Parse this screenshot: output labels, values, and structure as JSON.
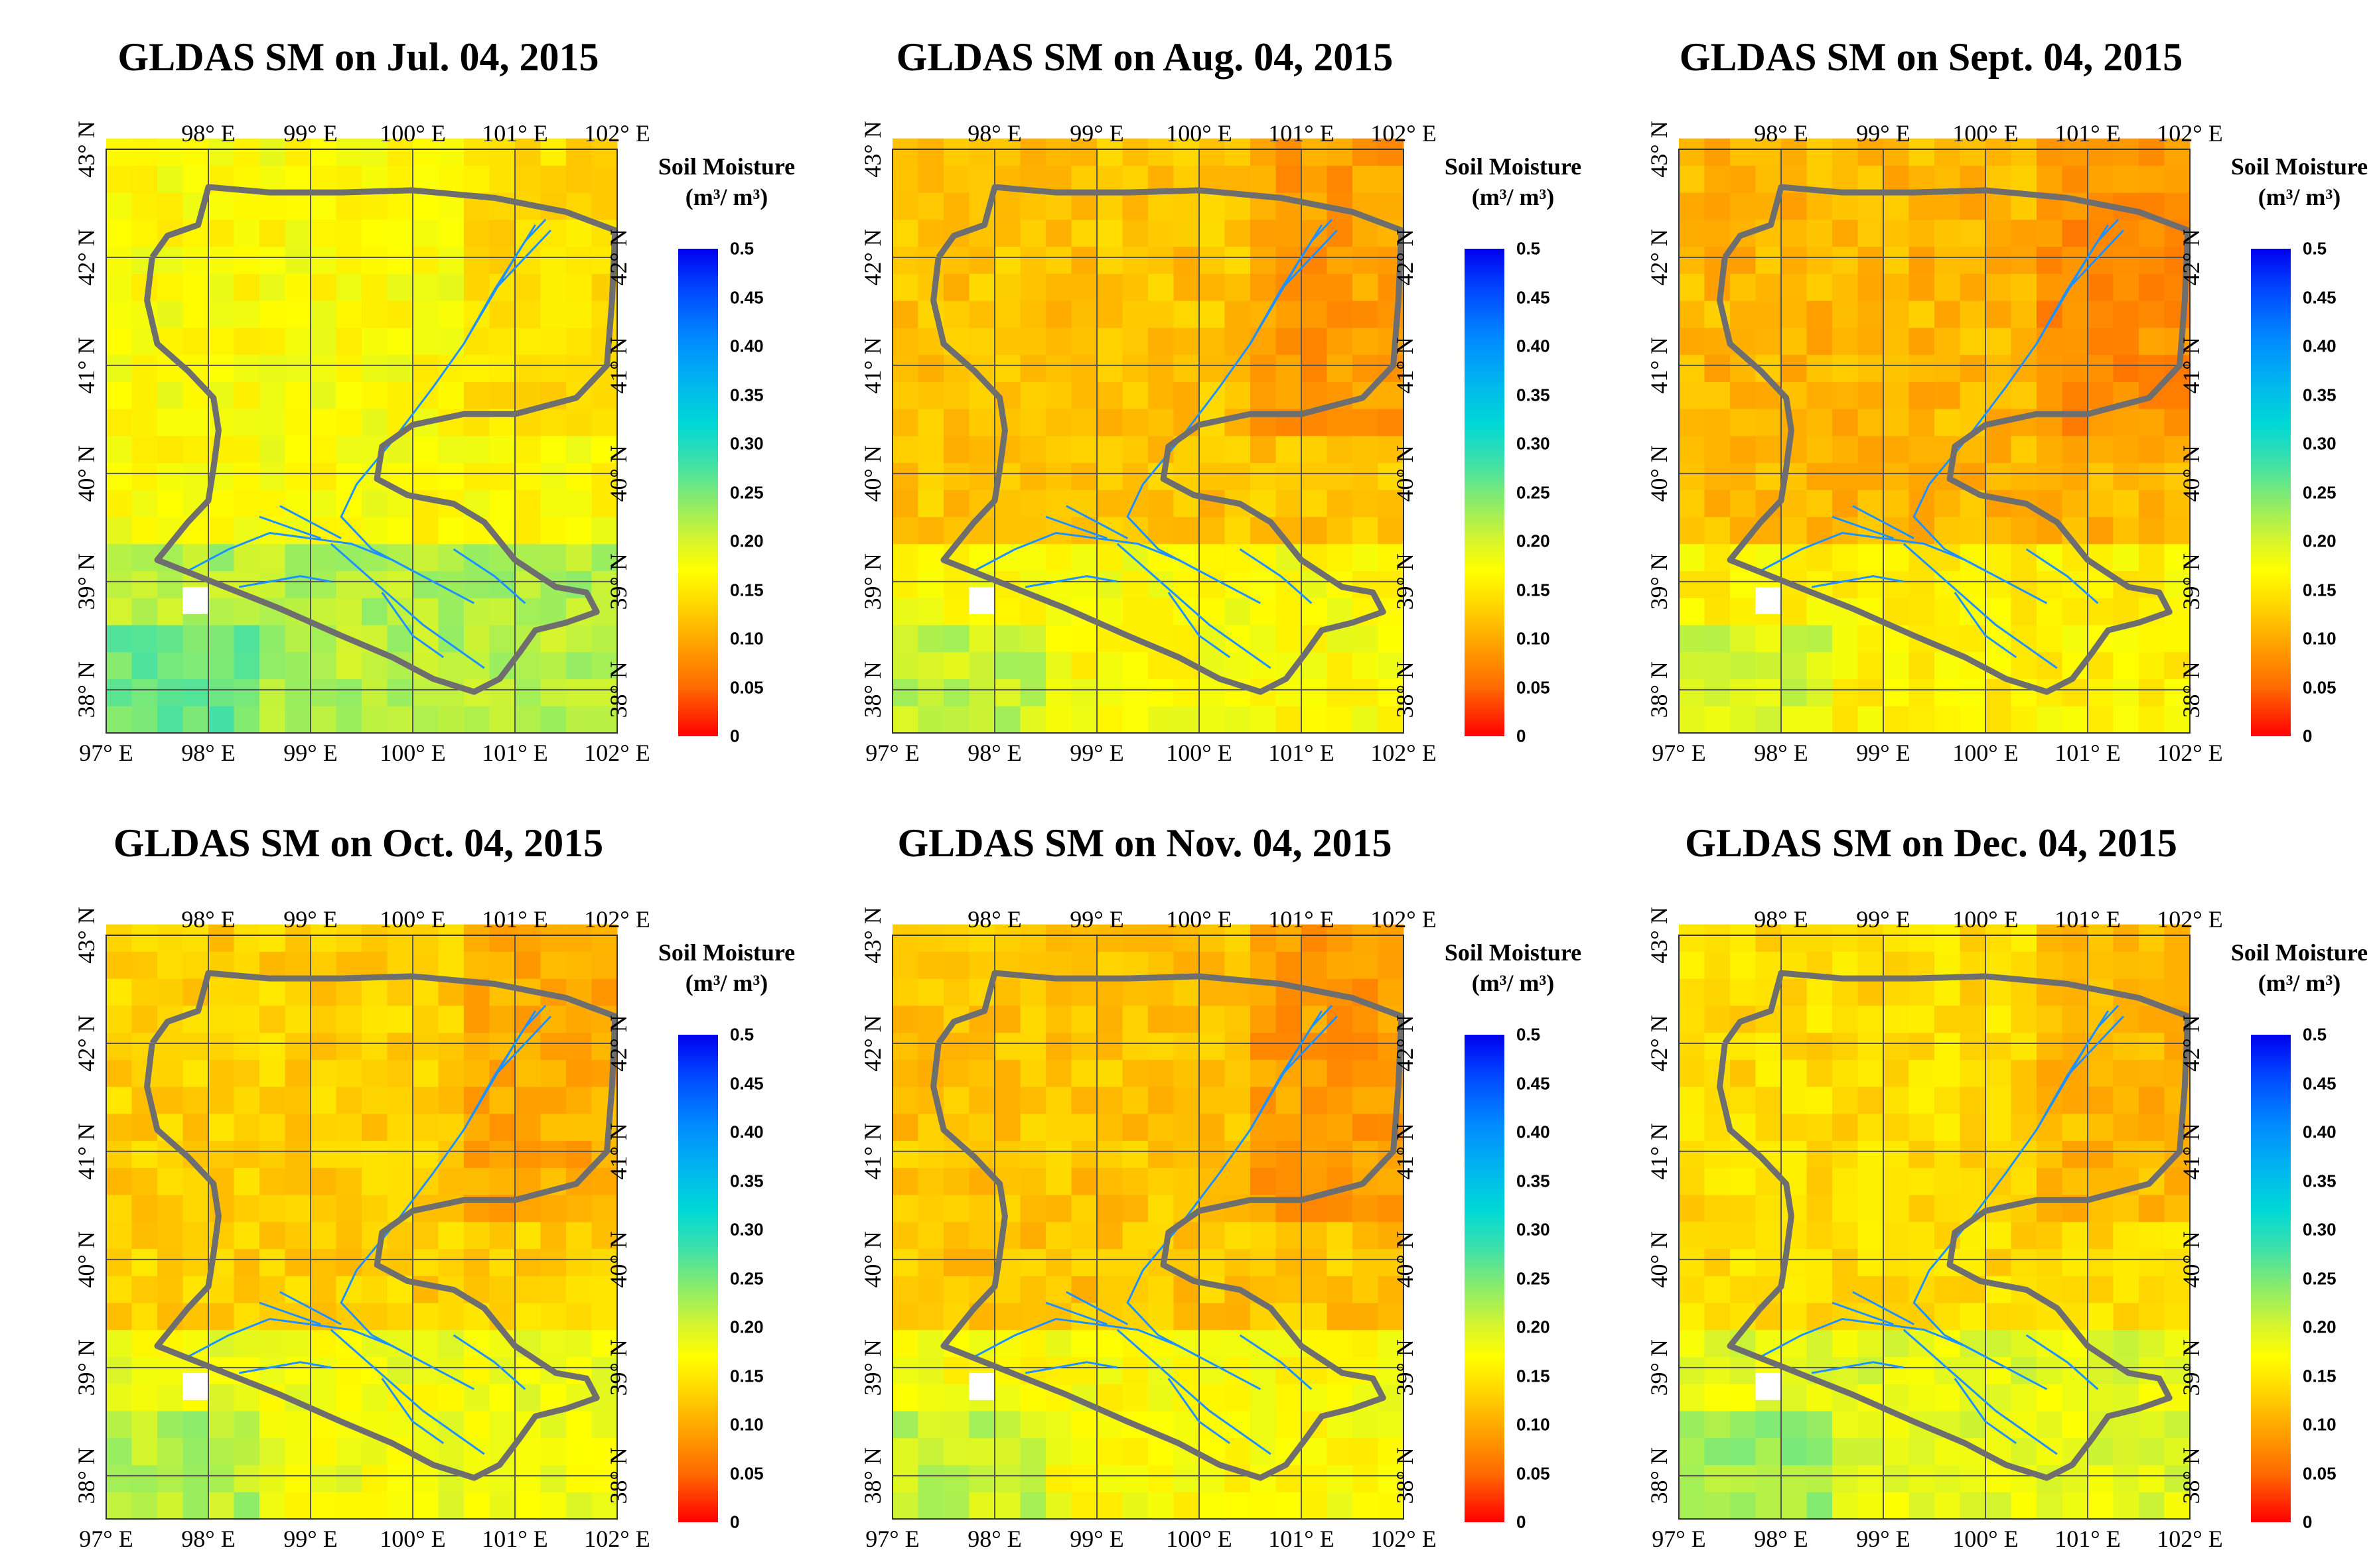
{
  "figure": {
    "panels": [
      {
        "title": "GLDAS SM on Jul. 04, 2015",
        "base_sm": 0.17
      },
      {
        "title": "GLDAS SM on Aug. 04, 2015",
        "base_sm": 0.12
      },
      {
        "title": "GLDAS SM on Sept. 04, 2015",
        "base_sm": 0.11
      },
      {
        "title": "GLDAS SM on Oct. 04, 2015",
        "base_sm": 0.13
      },
      {
        "title": "GLDAS SM on Nov. 04, 2015",
        "base_sm": 0.12
      },
      {
        "title": "GLDAS SM on Dec. 04, 2015",
        "base_sm": 0.14
      }
    ],
    "lon_labels": [
      "97° E",
      "98° E",
      "99° E",
      "100° E",
      "101° E",
      "102° E"
    ],
    "lat_labels": [
      "38° N",
      "39° N",
      "40° N",
      "41° N",
      "42° N",
      "43° N"
    ],
    "colorbar": {
      "title_line1": "Soil Moisture",
      "title_line2": "(m³/ m³)",
      "ticks": [
        "0",
        "0.05",
        "0.10",
        "0.15",
        "0.20",
        "0.25",
        "0.30",
        "0.35",
        "0.40",
        "0.45",
        "0.5"
      ]
    },
    "colors": {
      "boundary": "#6e6e6e",
      "river": "#1e90ff",
      "grid": "#555555"
    }
  }
}
